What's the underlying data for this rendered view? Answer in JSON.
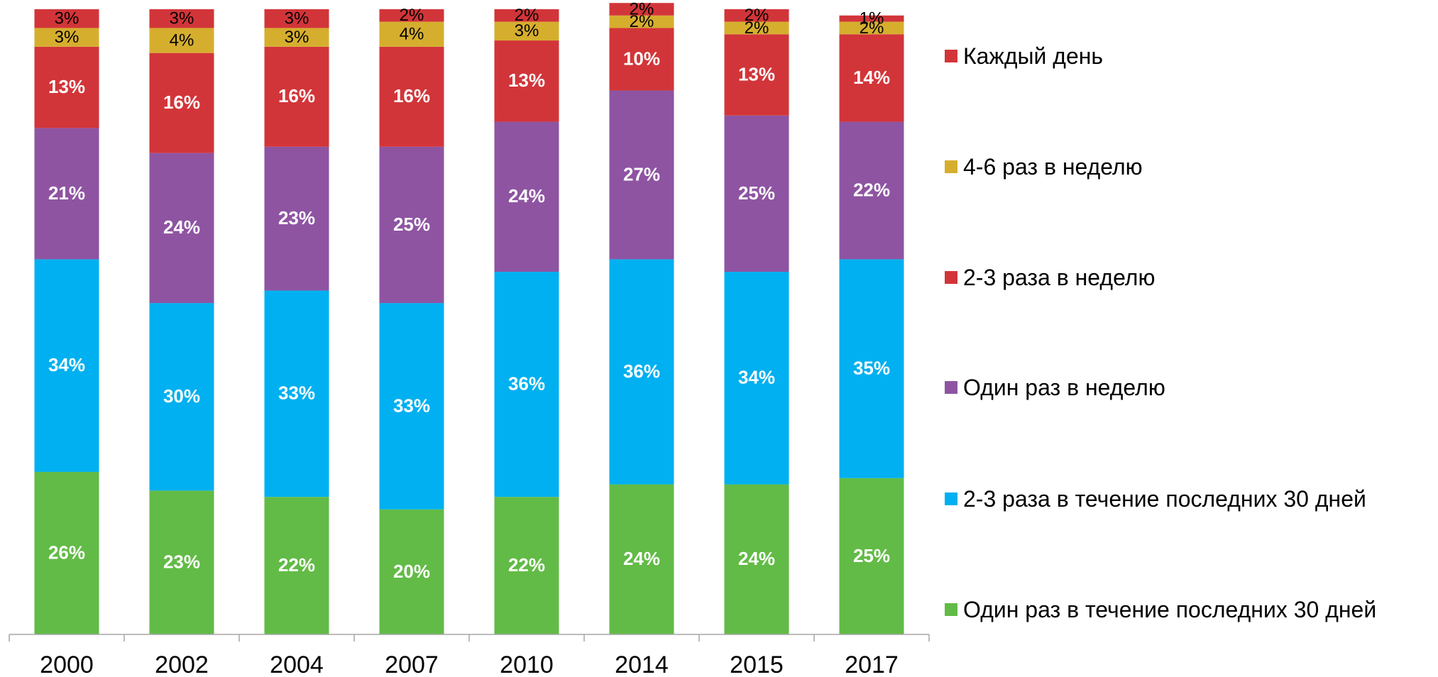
{
  "chart_data": {
    "type": "stacked_bar",
    "categories": [
      "2000",
      "2002",
      "2004",
      "2007",
      "2010",
      "2014",
      "2015",
      "2017"
    ],
    "ylim": [
      0,
      100
    ],
    "series": [
      {
        "name": "Один раз в течение последних 30 дней",
        "color": "#62bb46",
        "values": [
          26,
          23,
          22,
          20,
          22,
          24,
          24,
          25
        ],
        "value_labels": [
          "26%",
          "23%",
          "22%",
          "20%",
          "22%",
          "24%",
          "24%",
          "25%"
        ]
      },
      {
        "name": "2-3 раза в течение последних 30 дней",
        "color": "#00b0f0",
        "values": [
          34,
          30,
          33,
          33,
          36,
          36,
          34,
          35
        ],
        "value_labels": [
          "34%",
          "30%",
          "33%",
          "33%",
          "36%",
          "36%",
          "34%",
          "35%"
        ]
      },
      {
        "name": "Один раз в неделю",
        "color": "#8e54a2",
        "values": [
          21,
          24,
          23,
          25,
          24,
          27,
          25,
          22
        ],
        "value_labels": [
          "21%",
          "24%",
          "23%",
          "25%",
          "24%",
          "27%",
          "25%",
          "22%"
        ]
      },
      {
        "name": "2-3 раза в неделю",
        "color": "#d23539",
        "values": [
          13,
          16,
          16,
          16,
          13,
          10,
          13,
          14
        ],
        "value_labels": [
          "13%",
          "16%",
          "16%",
          "16%",
          "13%",
          "10%",
          "13%",
          "14%"
        ]
      },
      {
        "name": "4-6 раз в неделю",
        "color": "#d6ae2e",
        "values": [
          3,
          4,
          3,
          4,
          3,
          2,
          2,
          2
        ],
        "value_labels": [
          "3%",
          "4%",
          "3%",
          "4%",
          "3%",
          "2%",
          "2%",
          "2%"
        ]
      },
      {
        "name": "Каждый день",
        "color": "#d23539",
        "values": [
          3,
          3,
          3,
          2,
          2,
          2,
          2,
          1
        ],
        "value_labels": [
          "3%",
          "3%",
          "3%",
          "2%",
          "2%",
          "2%",
          "2%",
          "1%"
        ]
      }
    ],
    "legend": "right"
  }
}
